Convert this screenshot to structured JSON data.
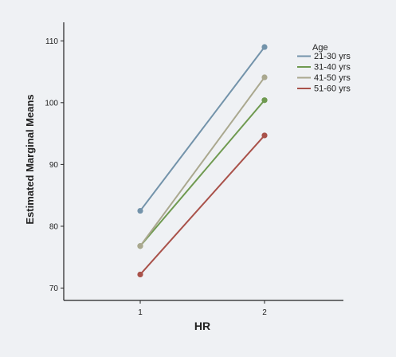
{
  "chart_data": {
    "type": "line",
    "title": "",
    "xlabel": "HR",
    "ylabel": "Estimated Marginal Means",
    "x": [
      "1",
      "2"
    ],
    "ylim": [
      68,
      113
    ],
    "yticks": [
      70,
      80,
      90,
      100,
      110
    ],
    "grid": false,
    "legend": {
      "title": "Age",
      "placement": "top-right"
    },
    "series": [
      {
        "name": "21-30 yrs",
        "values": [
          82.5,
          109
        ],
        "color": "#7393aa"
      },
      {
        "name": "31-40 yrs",
        "values": [
          76.8,
          100.4
        ],
        "color": "#6f9a50"
      },
      {
        "name": "41-50 yrs",
        "values": [
          76.8,
          104.1
        ],
        "color": "#aaa88f"
      },
      {
        "name": "51-60 yrs",
        "values": [
          72.2,
          94.7
        ],
        "color": "#a9524a"
      }
    ]
  }
}
